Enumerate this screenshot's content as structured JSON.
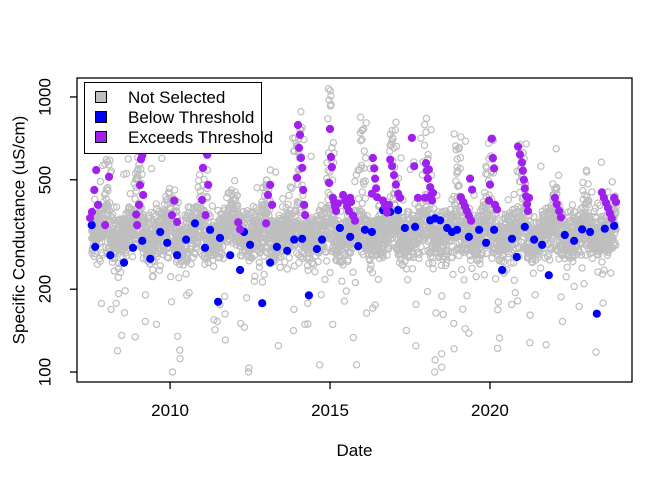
{
  "figure": {
    "kind": "R base scatter plot",
    "background": "#ffffff"
  },
  "chart_data": {
    "type": "scatter",
    "title": "",
    "xlabel": "Date",
    "ylabel": "Specific Conductance (uS/cm)",
    "grid": false,
    "x_axis": {
      "ticks": [
        2010,
        2015,
        2020
      ],
      "tick_labels": [
        "2010",
        "2015",
        "2020"
      ],
      "range": [
        2007.09,
        2024.44
      ],
      "scale": "linear"
    },
    "y_axis": {
      "ticks": [
        100,
        200,
        500,
        1000
      ],
      "tick_labels": [
        "100",
        "200",
        "500",
        "1000"
      ],
      "range": [
        92,
        1172
      ],
      "scale": "log"
    },
    "legend": {
      "position": "topleft",
      "items": [
        {
          "label": "Not Selected",
          "color": "#BEBEBE",
          "marker": "open-circle"
        },
        {
          "label": "Below Threshold",
          "color": "#0000FF",
          "marker": "filled-circle"
        },
        {
          "label": "Exceeds Threshold",
          "color": "#A020F0",
          "marker": "filled-circle"
        }
      ]
    },
    "series": [
      {
        "name": "Not Selected",
        "color": "#BEBEBE",
        "marker": "open-circle",
        "marker_radius": 3.1,
        "note": "dense daily record ~2007.5-2023.95, band ~250-400 uS/cm with winter spikes; reproduced with seeded generator",
        "generator": {
          "seed": 42,
          "t_start": 2007.55,
          "t_end": 2023.95,
          "step": 0.0042,
          "base_log": 2.502,
          "noise_sd": 0.045,
          "season_amp": 0.022,
          "dip_prob": 0.055,
          "dip_min": 0.04,
          "dip_max": 0.45,
          "high_prob": 0.012,
          "spike_prob": 0.6,
          "spike_sigma": 0.085,
          "spike_base": 2.53,
          "cap_log": 3.03,
          "winters": {
            "2008": 0.28,
            "2009": 0.3,
            "2010": 0.14,
            "2011": 0.42,
            "2012": 0.12,
            "2013": 0.2,
            "2014": 0.38,
            "2015": 0.5,
            "2016": 0.38,
            "2017": 0.38,
            "2018": 0.4,
            "2019": 0.36,
            "2020": 0.32,
            "2021": 0.35,
            "2022": 0.17,
            "2023": 0.17,
            "2024": 0.12
          }
        }
      },
      {
        "name": "Below Threshold",
        "color": "#0000FF",
        "marker": "filled-circle",
        "marker_radius": 3.7,
        "points": [
          [
            2007.55,
            342
          ],
          [
            2007.66,
            285
          ],
          [
            2008.13,
            266
          ],
          [
            2008.56,
            250
          ],
          [
            2008.84,
            283
          ],
          [
            2009.13,
            300
          ],
          [
            2009.38,
            258
          ],
          [
            2009.69,
            323
          ],
          [
            2009.91,
            295
          ],
          [
            2010.22,
            266
          ],
          [
            2010.5,
            303
          ],
          [
            2010.78,
            347
          ],
          [
            2011.09,
            283
          ],
          [
            2011.25,
            329
          ],
          [
            2011.5,
            180
          ],
          [
            2011.56,
            307
          ],
          [
            2011.88,
            266
          ],
          [
            2012.19,
            235
          ],
          [
            2012.31,
            323
          ],
          [
            2012.5,
            290
          ],
          [
            2012.88,
            178
          ],
          [
            2013.13,
            250
          ],
          [
            2013.34,
            285
          ],
          [
            2013.66,
            276
          ],
          [
            2013.88,
            303
          ],
          [
            2014.13,
            305
          ],
          [
            2014.34,
            190
          ],
          [
            2014.59,
            280
          ],
          [
            2014.75,
            303
          ],
          [
            2015.31,
            334
          ],
          [
            2015.63,
            310
          ],
          [
            2015.88,
            287
          ],
          [
            2016.09,
            329
          ],
          [
            2016.31,
            323
          ],
          [
            2016.66,
            388
          ],
          [
            2016.88,
            382
          ],
          [
            2017.13,
            388
          ],
          [
            2017.34,
            334
          ],
          [
            2017.66,
            337
          ],
          [
            2018.13,
            356
          ],
          [
            2018.28,
            362
          ],
          [
            2018.44,
            356
          ],
          [
            2018.66,
            334
          ],
          [
            2018.81,
            323
          ],
          [
            2018.97,
            329
          ],
          [
            2019.34,
            310
          ],
          [
            2019.66,
            329
          ],
          [
            2019.88,
            295
          ],
          [
            2020.13,
            329
          ],
          [
            2020.38,
            235
          ],
          [
            2020.69,
            305
          ],
          [
            2020.84,
            262
          ],
          [
            2021.09,
            337
          ],
          [
            2021.38,
            303
          ],
          [
            2021.63,
            290
          ],
          [
            2021.84,
            225
          ],
          [
            2022.34,
            315
          ],
          [
            2022.63,
            300
          ],
          [
            2022.88,
            330
          ],
          [
            2023.13,
            323
          ],
          [
            2023.34,
            163
          ],
          [
            2023.59,
            332
          ],
          [
            2023.88,
            340
          ]
        ]
      },
      {
        "name": "Exceeds Threshold",
        "color": "#A020F0",
        "marker": "filled-circle",
        "marker_radius": 3.7,
        "points": [
          [
            2007.5,
            363
          ],
          [
            2007.56,
            382
          ],
          [
            2007.63,
            459
          ],
          [
            2007.69,
            542
          ],
          [
            2007.75,
            405
          ],
          [
            2007.97,
            342
          ],
          [
            2008.09,
            512
          ],
          [
            2008.94,
            374
          ],
          [
            2008.97,
            342
          ],
          [
            2009.03,
            405
          ],
          [
            2009.06,
            478
          ],
          [
            2009.09,
            594
          ],
          [
            2009.13,
            613
          ],
          [
            2009.16,
            440
          ],
          [
            2010.06,
            372
          ],
          [
            2010.13,
            420
          ],
          [
            2010.22,
            351
          ],
          [
            2011.0,
            422
          ],
          [
            2011.03,
            552
          ],
          [
            2011.06,
            833
          ],
          [
            2011.09,
            759
          ],
          [
            2011.13,
            686
          ],
          [
            2011.16,
            616
          ],
          [
            2011.19,
            479
          ],
          [
            2011.11,
            372
          ],
          [
            2012.13,
            350
          ],
          [
            2012.19,
            330
          ],
          [
            2013.0,
            347
          ],
          [
            2013.06,
            440
          ],
          [
            2013.13,
            479
          ],
          [
            2013.19,
            405
          ],
          [
            2013.97,
            508
          ],
          [
            2014.0,
            791
          ],
          [
            2014.03,
            653
          ],
          [
            2014.06,
            728
          ],
          [
            2014.09,
            600
          ],
          [
            2014.13,
            552
          ],
          [
            2014.16,
            459
          ],
          [
            2014.19,
            405
          ],
          [
            2014.22,
            372
          ],
          [
            2014.97,
            487
          ],
          [
            2015.0,
            765
          ],
          [
            2015.03,
            605
          ],
          [
            2015.06,
            556
          ],
          [
            2015.09,
            430
          ],
          [
            2015.13,
            415
          ],
          [
            2015.16,
            400
          ],
          [
            2015.19,
            385
          ],
          [
            2015.25,
            410
          ],
          [
            2015.41,
            440
          ],
          [
            2015.47,
            420
          ],
          [
            2015.53,
            400
          ],
          [
            2015.59,
            385
          ],
          [
            2015.63,
            430
          ],
          [
            2015.66,
            415
          ],
          [
            2015.72,
            370
          ],
          [
            2015.78,
            355
          ],
          [
            2016.31,
            445
          ],
          [
            2016.34,
            600
          ],
          [
            2016.38,
            550
          ],
          [
            2016.41,
            505
          ],
          [
            2016.44,
            465
          ],
          [
            2016.47,
            432
          ],
          [
            2016.66,
            420
          ],
          [
            2016.72,
            400
          ],
          [
            2016.78,
            380
          ],
          [
            2016.84,
            405
          ],
          [
            2016.88,
            592
          ],
          [
            2016.94,
            560
          ],
          [
            2017.0,
            520
          ],
          [
            2017.06,
            480
          ],
          [
            2017.13,
            445
          ],
          [
            2017.19,
            430
          ],
          [
            2017.56,
            710
          ],
          [
            2017.63,
            560
          ],
          [
            2017.75,
            430
          ],
          [
            2017.97,
            430
          ],
          [
            2018.0,
            575
          ],
          [
            2018.03,
            540
          ],
          [
            2018.06,
            505
          ],
          [
            2018.09,
            545
          ],
          [
            2018.13,
            470
          ],
          [
            2018.16,
            440
          ],
          [
            2018.19,
            420
          ],
          [
            2018.22,
            448
          ],
          [
            2019.09,
            432
          ],
          [
            2019.16,
            415
          ],
          [
            2019.22,
            400
          ],
          [
            2019.28,
            385
          ],
          [
            2019.34,
            370
          ],
          [
            2019.38,
            505
          ],
          [
            2019.41,
            355
          ],
          [
            2019.44,
            460
          ],
          [
            2019.97,
            420
          ],
          [
            2020.0,
            480
          ],
          [
            2020.06,
            705
          ],
          [
            2020.09,
            600
          ],
          [
            2020.13,
            550
          ],
          [
            2020.16,
            405
          ],
          [
            2020.22,
            390
          ],
          [
            2020.88,
            660
          ],
          [
            2020.94,
            618
          ],
          [
            2021.0,
            578
          ],
          [
            2021.03,
            540
          ],
          [
            2021.06,
            500
          ],
          [
            2021.09,
            465
          ],
          [
            2021.13,
            435
          ],
          [
            2021.16,
            408
          ],
          [
            2021.19,
            385
          ],
          [
            2021.22,
            430
          ],
          [
            2022.03,
            430
          ],
          [
            2022.09,
            408
          ],
          [
            2022.16,
            385
          ],
          [
            2022.22,
            365
          ],
          [
            2023.5,
            450
          ],
          [
            2023.56,
            430
          ],
          [
            2023.63,
            412
          ],
          [
            2023.69,
            395
          ],
          [
            2023.75,
            378
          ],
          [
            2023.81,
            362
          ],
          [
            2023.88,
            430
          ],
          [
            2023.94,
            415
          ]
        ]
      }
    ]
  }
}
